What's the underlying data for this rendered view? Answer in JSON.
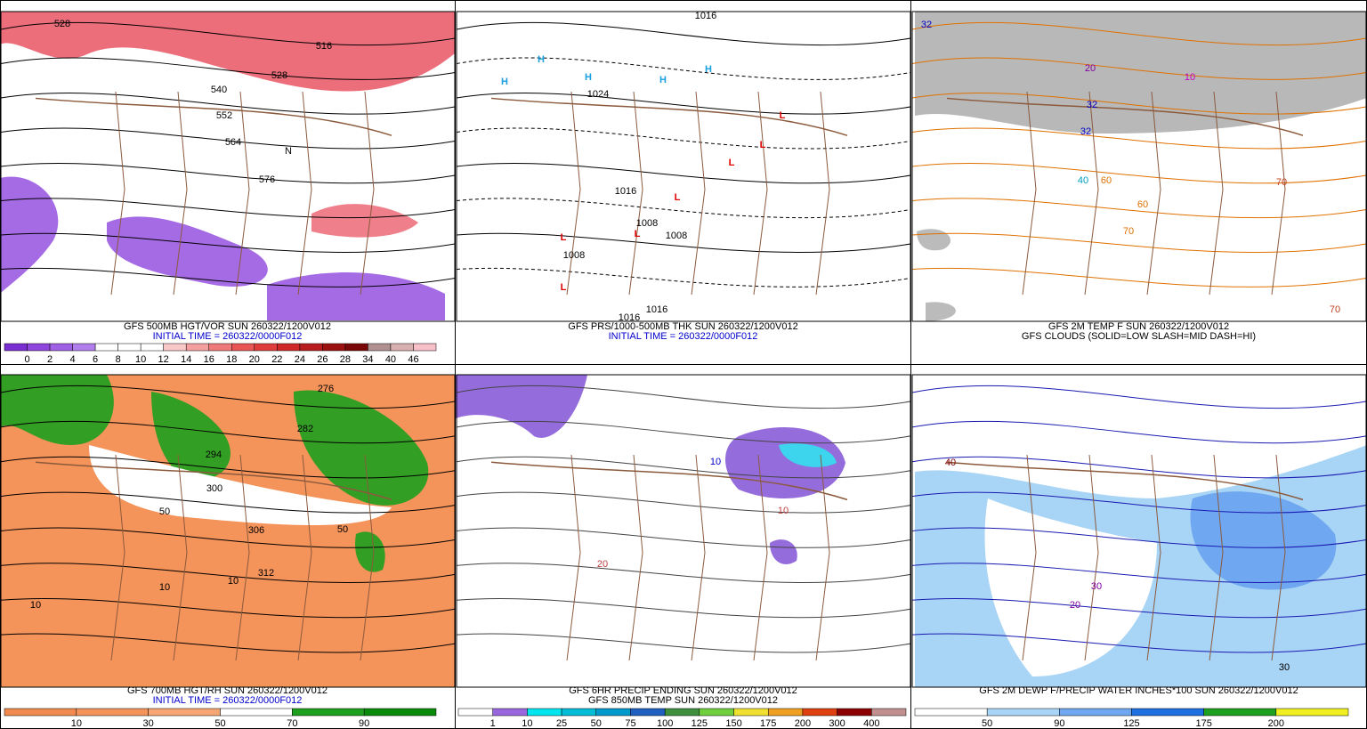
{
  "panels": [
    {
      "caption": [
        "GFS 500MB HGT/VOR SUN 260322/1200V012",
        "INITIAL TIME = 260322/0000F012"
      ],
      "colorbar_labels": [
        0,
        2,
        4,
        6,
        8,
        10,
        12,
        14,
        16,
        18,
        20,
        22,
        24,
        26,
        28,
        34,
        40,
        46
      ],
      "map_labels": [
        "528",
        "516",
        "528",
        "540",
        "552",
        "564",
        "576",
        "N"
      ]
    },
    {
      "caption": [
        "GFS PRS/1000-500MB THK SUN 260322/1200V012",
        "INITIAL TIME = 260322/0000F012"
      ],
      "map_labels": [
        "1016",
        "H",
        "H",
        "H",
        "H",
        "H",
        "L",
        "L",
        "L",
        "L",
        "L",
        "L",
        "L",
        "1024",
        "1016",
        "1008",
        "1008",
        "1008",
        "1016",
        "1016"
      ]
    },
    {
      "caption": [
        "GFS 2M TEMP F SUN 260322/1200V012",
        "GFS CLOUDS (SOLID=LOW SLASH=MID DASH=HI)"
      ],
      "map_labels": [
        "32",
        "32",
        "32",
        "40",
        "60",
        "70",
        "60",
        "70",
        "70",
        "20",
        "10"
      ]
    },
    {
      "caption": [
        "GFS 700MB HGT/RH SUN 260322/1200V012",
        "INITIAL TIME = 260322/0000F012"
      ],
      "colorbar_labels": [
        10,
        30,
        50,
        70,
        90
      ],
      "map_labels": [
        "276",
        "282",
        "294",
        "300",
        "306",
        "312",
        "10",
        "10",
        "50",
        "50",
        "10"
      ]
    },
    {
      "caption": [
        "GFS 6HR PRECIP ENDING SUN 260322/1200V012",
        "GFS 850MB TEMP SUN 260322/1200V012"
      ],
      "colorbar_labels": [
        1,
        10,
        25,
        50,
        75,
        100,
        125,
        150,
        175,
        200,
        300,
        400
      ],
      "map_labels": [
        "10",
        "10",
        "20"
      ]
    },
    {
      "caption": [
        "GFS 2M DEWP F/PRECIP WATER INCHES*100 SUN 260322/1200V012"
      ],
      "colorbar_labels": [
        50,
        90,
        125,
        175,
        200
      ],
      "map_labels": [
        "40",
        "30",
        "20",
        "30"
      ]
    }
  ]
}
